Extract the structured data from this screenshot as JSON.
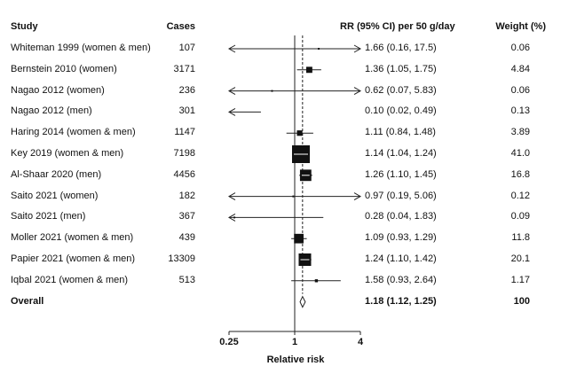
{
  "headers": {
    "study": "Study",
    "cases": "Cases",
    "rr": "RR (95% CI) per 50 g/day",
    "weight": "Weight (%)"
  },
  "chart_data": {
    "type": "forest",
    "xscale": "log2",
    "xlim": [
      0.25,
      4
    ],
    "xticks": [
      0.25,
      1,
      4
    ],
    "xtick_labels": [
      "0.25",
      "1",
      "4"
    ],
    "xlabel": "Relative risk",
    "reference_line": 1,
    "overall_line": 1.18,
    "rows": [
      {
        "study": "Whiteman 1999 (women & men)",
        "cases": "107",
        "rr": 1.66,
        "lo": 0.16,
        "hi": 17.5,
        "rr_text": "1.66 (0.16, 17.5)",
        "weight": "0.06",
        "weight_value": 0.06
      },
      {
        "study": "Bernstein 2010 (women)",
        "cases": "3171",
        "rr": 1.36,
        "lo": 1.05,
        "hi": 1.75,
        "rr_text": "1.36 (1.05, 1.75)",
        "weight": "4.84",
        "weight_value": 4.84
      },
      {
        "study": "Nagao 2012 (women)",
        "cases": "236",
        "rr": 0.62,
        "lo": 0.07,
        "hi": 5.83,
        "rr_text": "0.62 (0.07, 5.83)",
        "weight": "0.06",
        "weight_value": 0.06
      },
      {
        "study": "Nagao 2012 (men)",
        "cases": "301",
        "rr": 0.1,
        "lo": 0.02,
        "hi": 0.49,
        "rr_text": "0.10 (0.02, 0.49)",
        "weight": "0.13",
        "weight_value": 0.13
      },
      {
        "study": "Haring 2014 (women & men)",
        "cases": "1147",
        "rr": 1.11,
        "lo": 0.84,
        "hi": 1.48,
        "rr_text": "1.11 (0.84, 1.48)",
        "weight": "3.89",
        "weight_value": 3.89
      },
      {
        "study": "Key 2019 (women & men)",
        "cases": "7198",
        "rr": 1.14,
        "lo": 1.04,
        "hi": 1.24,
        "rr_text": "1.14 (1.04, 1.24)",
        "weight": "41.0",
        "weight_value": 41.0
      },
      {
        "study": "Al-Shaar 2020 (men)",
        "cases": "4456",
        "rr": 1.26,
        "lo": 1.1,
        "hi": 1.45,
        "rr_text": "1.26 (1.10, 1.45)",
        "weight": "16.8",
        "weight_value": 16.8
      },
      {
        "study": "Saito 2021 (women)",
        "cases": "182",
        "rr": 0.97,
        "lo": 0.19,
        "hi": 5.06,
        "rr_text": "0.97 (0.19, 5.06)",
        "weight": "0.12",
        "weight_value": 0.12
      },
      {
        "study": "Saito 2021 (men)",
        "cases": "367",
        "rr": 0.28,
        "lo": 0.04,
        "hi": 1.83,
        "rr_text": "0.28 (0.04, 1.83)",
        "weight": "0.09",
        "weight_value": 0.09
      },
      {
        "study": "Moller 2021 (women & men)",
        "cases": "439",
        "rr": 1.09,
        "lo": 0.93,
        "hi": 1.29,
        "rr_text": "1.09 (0.93, 1.29)",
        "weight": "11.8",
        "weight_value": 11.8
      },
      {
        "study": "Papier 2021 (women & men)",
        "cases": "13309",
        "rr": 1.24,
        "lo": 1.1,
        "hi": 1.42,
        "rr_text": "1.24 (1.10, 1.42)",
        "weight": "20.1",
        "weight_value": 20.1
      },
      {
        "study": "Iqbal 2021 (women & men)",
        "cases": "513",
        "rr": 1.58,
        "lo": 0.93,
        "hi": 2.64,
        "rr_text": "1.58 (0.93, 2.64)",
        "weight": "1.17",
        "weight_value": 1.17
      }
    ],
    "overall": {
      "study": "Overall",
      "rr": 1.18,
      "lo": 1.12,
      "hi": 1.25,
      "rr_text": "1.18 (1.12, 1.25)",
      "weight": "100"
    }
  }
}
